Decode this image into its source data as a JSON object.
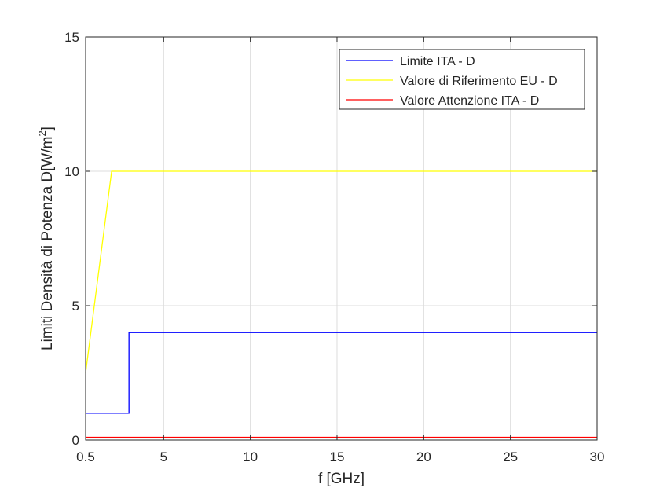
{
  "chart_data": {
    "type": "line",
    "title": "",
    "xlabel": "f [GHz]",
    "ylabel": "Limiti Densità di Potenza D[W/m",
    "ylabel_sup": "2",
    "ylabel_close": "]",
    "xlim": [
      0.5,
      30
    ],
    "ylim": [
      0,
      15
    ],
    "xticks": [
      0.5,
      5,
      10,
      15,
      20,
      25,
      30
    ],
    "xtick_labels": [
      "0.5",
      "5",
      "10",
      "15",
      "20",
      "25",
      "30"
    ],
    "yticks": [
      0,
      5,
      10,
      15
    ],
    "ytick_labels": [
      "0",
      "5",
      "10",
      "15"
    ],
    "grid": true,
    "legend_position": "top-right",
    "series": [
      {
        "name": "Limite ITA - D",
        "color": "#0000ff",
        "x": [
          0.5,
          3,
          3,
          30
        ],
        "y": [
          1,
          1,
          4,
          4
        ]
      },
      {
        "name": "Valore di Riferimento EU - D",
        "color": "#ffff00",
        "x": [
          0.5,
          2,
          30
        ],
        "y": [
          2.5,
          10,
          10
        ]
      },
      {
        "name": "Valore Attenzione ITA - D",
        "color": "#ff0000",
        "x": [
          0.5,
          30
        ],
        "y": [
          0.1,
          0.1
        ]
      }
    ]
  }
}
